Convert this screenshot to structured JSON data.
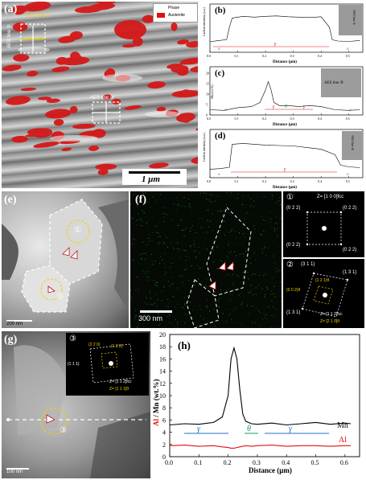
{
  "panel_a": {
    "label": "(a)",
    "legend_title": "Phase",
    "legend_item": "Austenite",
    "legend_color": "#e01010",
    "aes_line2": "AES line ②",
    "aes_line1": "AES line ①",
    "aes_line3": "AES line ③",
    "scale_bar": "1 μm"
  },
  "panel_b": {
    "label": "(b)",
    "ylabel": "Carbon intensity (a.u.)",
    "xlabel": "Distance (μm)",
    "inset_label": "AES line ①"
  },
  "panel_c": {
    "label": "(c)",
    "ylabel": "Mn (wt.%)",
    "xlabel": "Distance (μm)",
    "inset_label": "AES line ②"
  },
  "panel_d": {
    "label": "(d)",
    "ylabel": "Carbon intensity (a.u.)",
    "xlabel": "Distance (μm)",
    "inset_label": "AES line ③"
  },
  "panel_e": {
    "label": "(e)",
    "circle1": "①",
    "circle2": "②",
    "scale_bar": "200 nm"
  },
  "panel_f": {
    "label": "(f)",
    "scale_bar": "300 nm"
  },
  "saed1": {
    "num": "①",
    "zone": "Z= [1 0 0]fcc",
    "spots": [
      "(0 2 2)",
      "(0 2 2)",
      "(0 2 2)",
      "(0 2 2)"
    ]
  },
  "saed2": {
    "num": "②",
    "spots": [
      "(3 1 1)",
      "(1 3 1)",
      "(1 2 1)θ",
      "(0 0 2)θ",
      "(1 3 1)"
    ],
    "zone1": "Z= [1 1 2]fcc",
    "zone2": "Z= [2 1 0]θ"
  },
  "panel_g": {
    "label": "(g)",
    "circle": "③",
    "scale_bar": "100 nm",
    "inset_num": "③",
    "inset_spots": [
      "(2 2 0)",
      "(1 2 2)",
      "(1 1 1)"
    ],
    "inset_zone1": "Z= [1 1 2]fcc",
    "inset_zone2": "Z= [1 1 1]θ"
  },
  "chart_h": {
    "label": "(h)",
    "ylabel_al": "Al",
    "ylabel_rest": " / Mn (wt.%)",
    "xlabel": "Distance (μm)",
    "mn_label": "Mn",
    "al_label": "Al",
    "gamma1": "γ",
    "theta": "θ",
    "gamma2": "γ",
    "yticks": [
      "0",
      "2",
      "4",
      "6",
      "8",
      "10",
      "12",
      "14",
      "16",
      "18",
      "20"
    ],
    "xticks": [
      "0.0",
      "0.1",
      "0.2",
      "0.3",
      "0.4",
      "0.5",
      "0.6"
    ]
  },
  "small_charts": {
    "xticks": [
      "0.0",
      "0.1",
      "0.2",
      "0.3",
      "0.4",
      "0.5"
    ],
    "b_alpha1": "α",
    "b_gamma": "γ",
    "b_alpha2": "α",
    "c_alpha1": "α",
    "c_gamma1": "γ",
    "c_theta": "θ",
    "c_gamma2": "γ",
    "c_alpha2": "α",
    "d_alpha1": "α",
    "d_gamma": "γ",
    "d_alpha2": "α",
    "c_yticks": [
      "0",
      "5",
      "10",
      "15",
      "20"
    ]
  },
  "chart_data": [
    {
      "type": "line",
      "x": [
        0.0,
        0.03,
        0.06,
        0.07,
        0.08,
        0.12,
        0.16,
        0.2,
        0.24,
        0.28,
        0.32,
        0.36,
        0.4,
        0.43,
        0.44,
        0.46,
        0.5,
        0.54
      ],
      "series": [
        {
          "values": [
            0.25,
            0.28,
            0.3,
            0.6,
            0.82,
            0.86,
            0.84,
            0.86,
            0.87,
            0.85,
            0.84,
            0.83,
            0.85,
            0.6,
            0.3,
            0.27,
            0.26,
            0.28
          ]
        }
      ],
      "xlabel": "Distance (μm)",
      "ylabel": "Carbon intensity (a.u.)",
      "xlim": [
        0,
        0.55
      ],
      "ylim": [
        0,
        1
      ]
    },
    {
      "type": "line",
      "x": [
        0.0,
        0.05,
        0.1,
        0.15,
        0.18,
        0.2,
        0.21,
        0.22,
        0.23,
        0.25,
        0.28,
        0.32,
        0.36,
        0.4,
        0.45,
        0.5,
        0.54
      ],
      "series": [
        {
          "values": [
            2.5,
            2.2,
            3.5,
            4,
            6,
            12,
            16,
            12,
            6,
            4.5,
            4.5,
            4,
            4.5,
            4,
            2.5,
            2.2,
            2.5
          ]
        }
      ],
      "xlabel": "Distance (μm)",
      "ylabel": "Mn (wt.%)",
      "xlim": [
        0,
        0.55
      ],
      "ylim": [
        0,
        20
      ]
    },
    {
      "type": "line",
      "x": [
        0.0,
        0.04,
        0.07,
        0.08,
        0.12,
        0.16,
        0.2,
        0.25,
        0.3,
        0.35,
        0.4,
        0.45,
        0.47,
        0.5,
        0.54
      ],
      "series": [
        {
          "values": [
            0.2,
            0.22,
            0.25,
            0.8,
            0.82,
            0.8,
            0.78,
            0.77,
            0.76,
            0.72,
            0.68,
            0.55,
            0.3,
            0.26,
            0.24
          ]
        }
      ],
      "xlabel": "Distance (μm)",
      "ylabel": "Carbon intensity (a.u.)",
      "xlim": [
        0,
        0.55
      ],
      "ylim": [
        0,
        1
      ]
    },
    {
      "type": "line",
      "x": [
        0.0,
        0.05,
        0.1,
        0.15,
        0.18,
        0.2,
        0.21,
        0.22,
        0.23,
        0.24,
        0.25,
        0.26,
        0.28,
        0.3,
        0.35,
        0.4,
        0.45,
        0.5,
        0.55,
        0.6,
        0.62
      ],
      "series": [
        {
          "name": "Mn",
          "values": [
            5.2,
            5.4,
            5.3,
            5.6,
            6.5,
            10,
            16,
            17.8,
            16,
            11,
            7,
            5.8,
            5.4,
            5.3,
            5.5,
            5.2,
            5.4,
            5.6,
            5.3,
            5.5,
            5.4
          ]
        },
        {
          "name": "Al",
          "values": [
            1.8,
            1.9,
            1.7,
            1.8,
            1.6,
            1.5,
            1.4,
            1.4,
            1.5,
            1.6,
            1.7,
            1.8,
            1.7,
            1.8,
            1.9,
            1.7,
            1.8,
            1.8,
            1.7,
            1.8,
            1.8
          ]
        }
      ],
      "xlabel": "Distance (μm)",
      "ylabel": "Al / Mn (wt.%)",
      "xlim": [
        0,
        0.65
      ],
      "ylim": [
        0,
        20
      ],
      "phase_labels": [
        "γ",
        "θ",
        "γ"
      ]
    }
  ]
}
